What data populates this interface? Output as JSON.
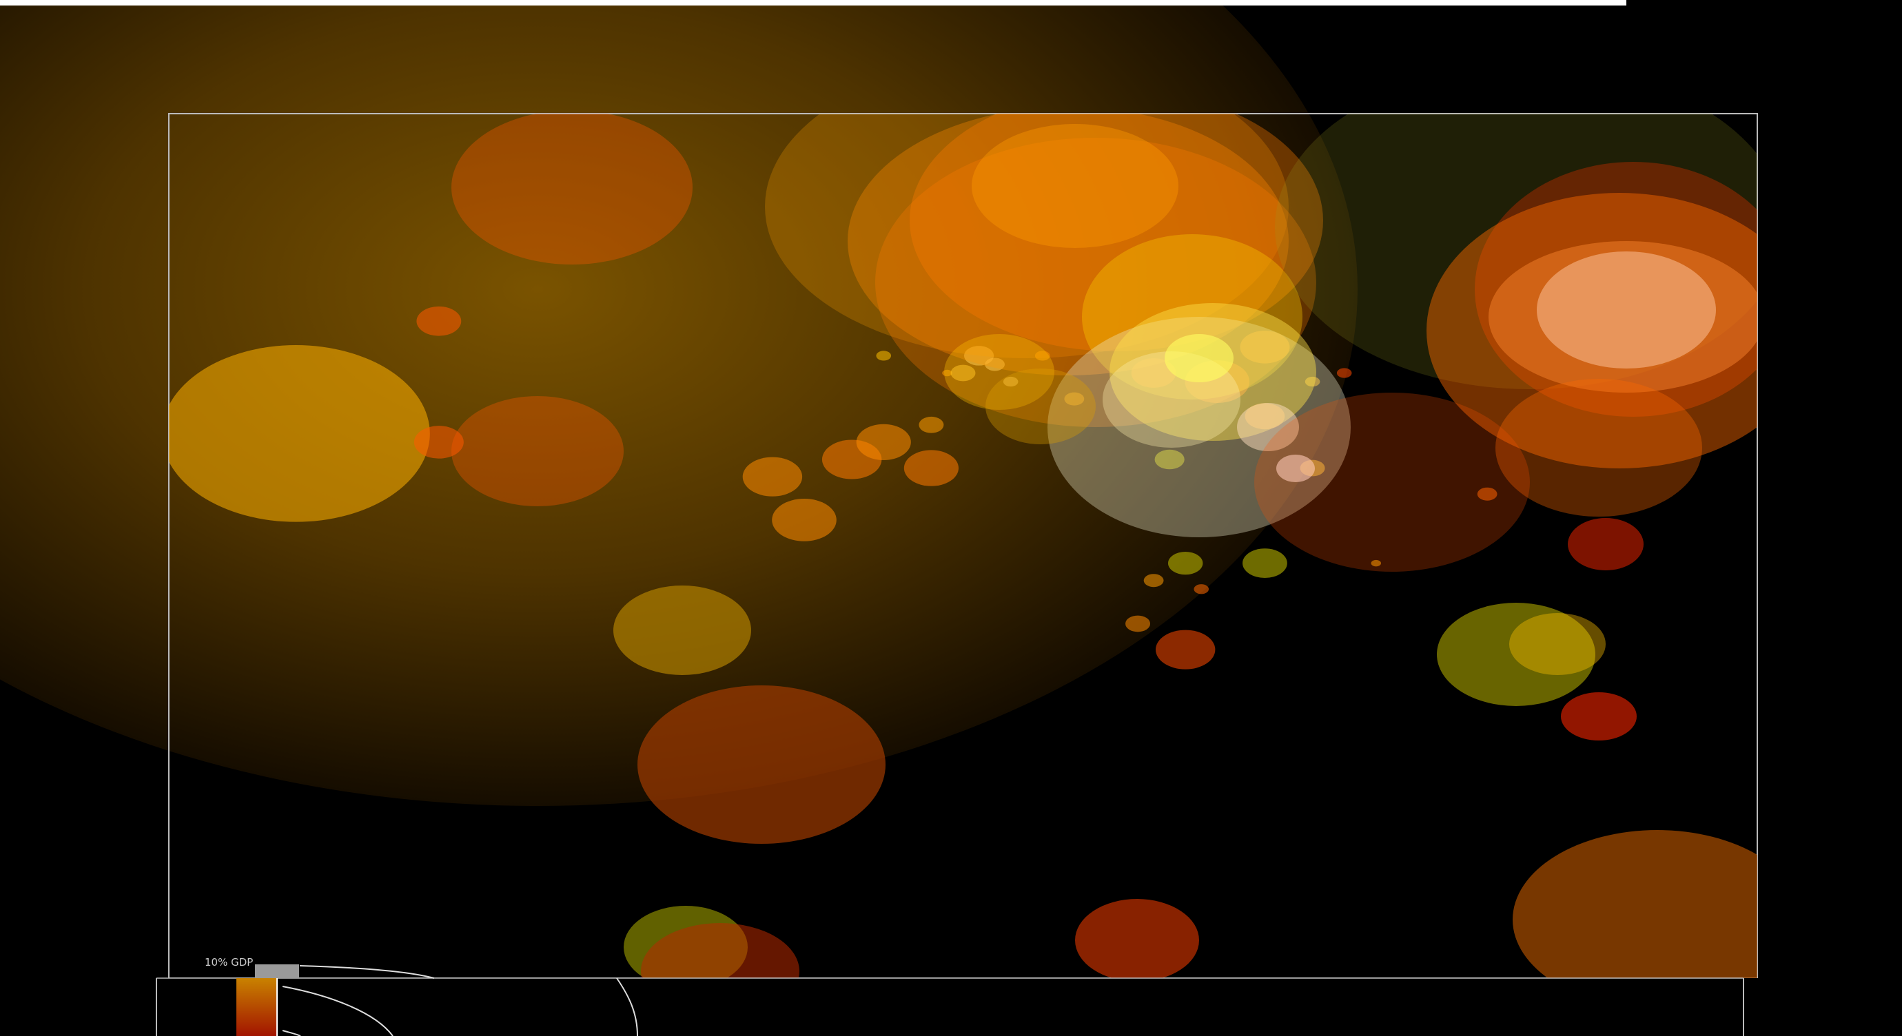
{
  "chart_data": {
    "type": "scatter",
    "title": "",
    "xlabel": "",
    "ylabel": "",
    "grid": false,
    "legend": {
      "label": "10% GDP",
      "placement": "bottom-left"
    },
    "colors": {
      "frame": "#bbbbbb",
      "legend_box": "#9a9a9a",
      "top_bar": "#ffffff",
      "background": "#000000"
    },
    "bubble_palette": [
      "#ff7a00",
      "#ff4a00",
      "#e65a00",
      "#ffb000",
      "#ffe24a",
      "#c9c200",
      "#fff2b0",
      "#b0e0c0"
    ],
    "series": [
      {
        "name": "",
        "points": [
          {
            "x": 8,
            "y": 37,
            "r": 54,
            "color": "#ffb000"
          },
          {
            "x": 17,
            "y": 24,
            "r": 9,
            "color": "#ff5a00"
          },
          {
            "x": 17,
            "y": 38,
            "r": 10,
            "color": "#ff5a00"
          },
          {
            "x": 40,
            "y": 47,
            "r": 13,
            "color": "#ff8a00"
          },
          {
            "x": 38,
            "y": 42,
            "r": 12,
            "color": "#ff8a00"
          },
          {
            "x": 43,
            "y": 40,
            "r": 12,
            "color": "#ff7a00"
          },
          {
            "x": 45,
            "y": 38,
            "r": 11,
            "color": "#ff8a00"
          },
          {
            "x": 48,
            "y": 41,
            "r": 11,
            "color": "#ff7a00"
          },
          {
            "x": 48,
            "y": 36,
            "r": 5,
            "color": "#ff9a00"
          },
          {
            "x": 49,
            "y": 30,
            "r": 2,
            "color": "#ffb000"
          },
          {
            "x": 45,
            "y": 28,
            "r": 3,
            "color": "#ffc000"
          },
          {
            "x": 50,
            "y": 30,
            "r": 5,
            "color": "#ffe24a"
          },
          {
            "x": 52,
            "y": 29,
            "r": 4,
            "color": "#fff2b0"
          },
          {
            "x": 53,
            "y": 31,
            "r": 3,
            "color": "#fff2b0"
          },
          {
            "x": 51,
            "y": 28,
            "r": 6,
            "color": "#fff2b0"
          },
          {
            "x": 55,
            "y": 28,
            "r": 3,
            "color": "#ffb000"
          },
          {
            "x": 57,
            "y": 33,
            "r": 4,
            "color": "#ffb000"
          },
          {
            "x": 62,
            "y": 30,
            "r": 9,
            "color": "#ff4a00"
          },
          {
            "x": 66,
            "y": 31,
            "r": 13,
            "color": "#ff5a00"
          },
          {
            "x": 69,
            "y": 27,
            "r": 10,
            "color": "#ff7a00"
          },
          {
            "x": 69,
            "y": 35,
            "r": 8,
            "color": "#ff7a00"
          },
          {
            "x": 72,
            "y": 31,
            "r": 3,
            "color": "#ffb000"
          },
          {
            "x": 63,
            "y": 40,
            "r": 6,
            "color": "#c9c200"
          },
          {
            "x": 72,
            "y": 41,
            "r": 5,
            "color": "#ffc000"
          },
          {
            "x": 74,
            "y": 30,
            "r": 3,
            "color": "#ff4a00"
          },
          {
            "x": 83,
            "y": 44,
            "r": 4,
            "color": "#ff6a00"
          },
          {
            "x": 64,
            "y": 62,
            "r": 12,
            "color": "#ff4a00"
          },
          {
            "x": 61,
            "y": 59,
            "r": 5,
            "color": "#ff8a00"
          },
          {
            "x": 64,
            "y": 52,
            "r": 7,
            "color": "#c9c200"
          },
          {
            "x": 69,
            "y": 52,
            "r": 9,
            "color": "#c9c200"
          },
          {
            "x": 76,
            "y": 52,
            "r": 2,
            "color": "#ffb000"
          },
          {
            "x": 62,
            "y": 54,
            "r": 4,
            "color": "#ff9a00"
          },
          {
            "x": 65,
            "y": 55,
            "r": 3,
            "color": "#ff6a00"
          }
        ]
      }
    ]
  }
}
